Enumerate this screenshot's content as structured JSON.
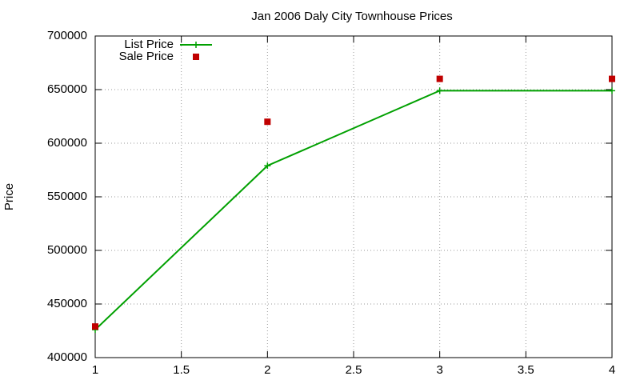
{
  "chart_data": {
    "type": "line",
    "title": "Jan 2006 Daly City Townhouse Prices",
    "y_label": "Price",
    "x": [
      1,
      2,
      3,
      4
    ],
    "series": [
      {
        "name": "List Price",
        "color": "#00a000",
        "style": "linespoints",
        "values": [
          426000,
          579000,
          649000,
          649000
        ]
      },
      {
        "name": "Sale Price",
        "color": "#c00000",
        "style": "points",
        "values": [
          429000,
          620000,
          660000,
          660000
        ]
      }
    ],
    "xlim": [
      1,
      4
    ],
    "xticks": [
      1,
      1.5,
      2,
      2.5,
      3,
      3.5,
      4
    ],
    "ylim": [
      400000,
      700000
    ],
    "yticks": [
      400000,
      450000,
      500000,
      550000,
      600000,
      650000,
      700000
    ],
    "grid": true,
    "legend": "top-left"
  }
}
